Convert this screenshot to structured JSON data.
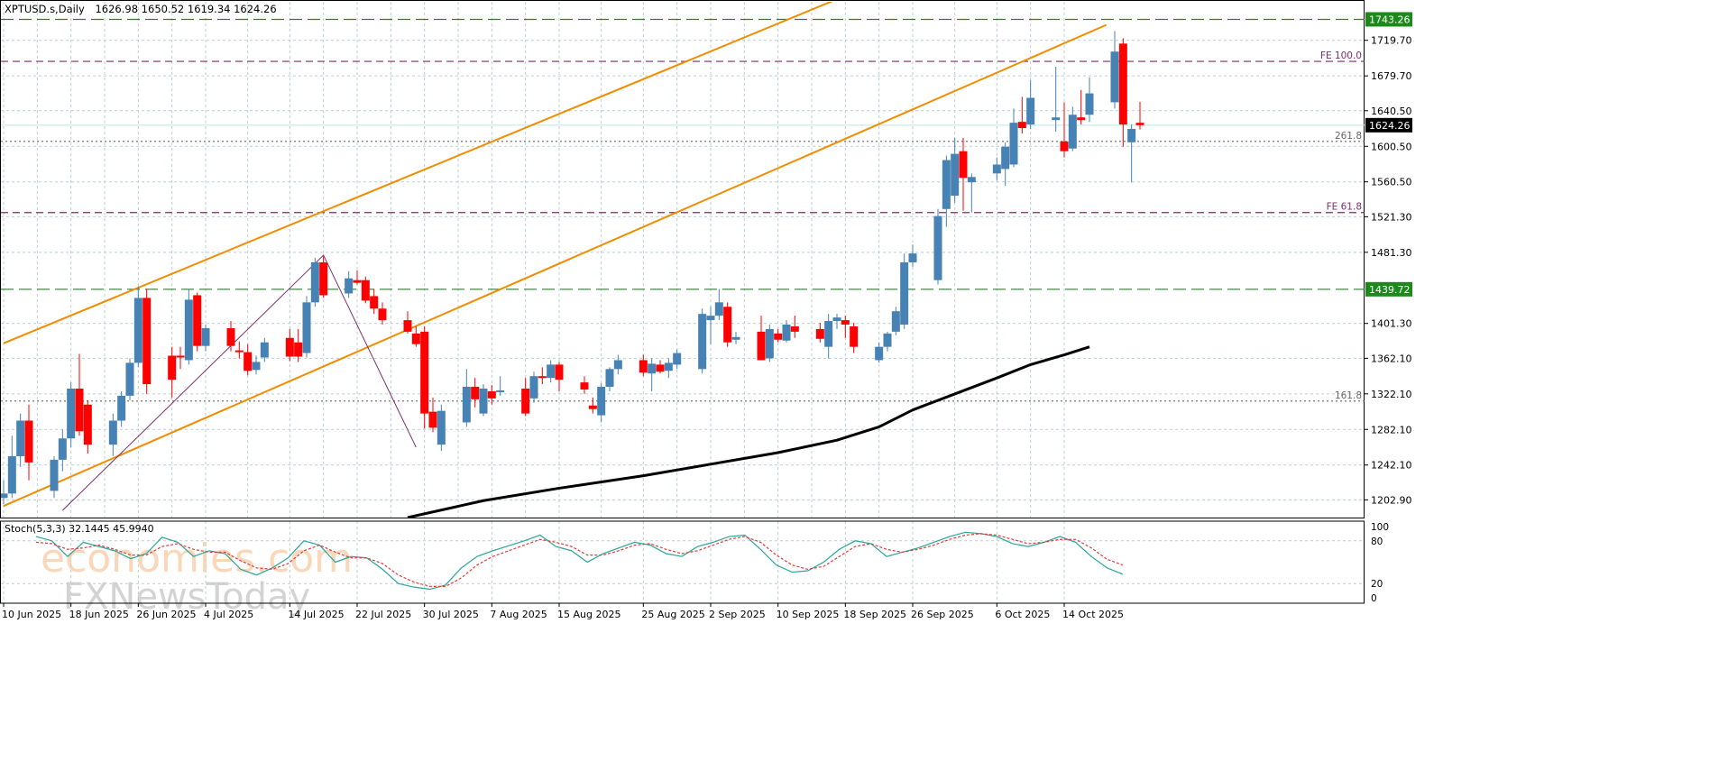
{
  "header": {
    "symbol": "XPTUSD.s,Daily",
    "ohlc": "1626.98 1650.52 1619.34 1624.26"
  },
  "watermark": {
    "line1": "economies.com",
    "line2": "FXNewsToday"
  },
  "chart_data": {
    "type": "candlestick",
    "symbol": "XPTUSD.s",
    "timeframe": "Daily",
    "price_axis": {
      "range": [
        1183,
        1763
      ],
      "tick_labels": [
        "1719.70",
        "1679.70",
        "1640.50",
        "1600.50",
        "1560.50",
        "1521.30",
        "1481.30",
        "1401.30",
        "1362.10",
        "1322.10",
        "1282.10",
        "1242.10",
        "1202.90"
      ]
    },
    "date_axis": [
      "10 Jun 2025",
      "18 Jun 2025",
      "26 Jun 2025",
      "4 Jul 2025",
      "14 Jul 2025",
      "22 Jul 2025",
      "30 Jul 2025",
      "7 Aug 2025",
      "15 Aug 2025",
      "25 Aug 2025",
      "2 Sep 2025",
      "10 Sep 2025",
      "18 Sep 2025",
      "26 Sep 2025",
      "6 Oct 2025",
      "14 Oct 2025"
    ],
    "current_price": {
      "value": 1624.26,
      "label": "1624.26"
    },
    "horizontal_levels": [
      {
        "value": 1743.26,
        "label": "1743.26",
        "style": "long-dash",
        "color": "#2e7d32",
        "boxed": true
      },
      {
        "value": 1439.72,
        "label": "1439.72",
        "style": "long-dash",
        "color": "#2e7d32",
        "boxed": true
      },
      {
        "value": 1696,
        "label": "FE 100.0",
        "style": "dash",
        "color": "#7b2d6e",
        "boxed": false
      },
      {
        "value": 1526,
        "label": "FE 61.8",
        "style": "dash",
        "color": "#7b2d6e",
        "boxed": false
      },
      {
        "value": 1606,
        "label": "261.8",
        "style": "dot",
        "color": "#666666",
        "boxed": false
      },
      {
        "value": 1314,
        "label": "161.8",
        "style": "dot",
        "color": "#666666",
        "boxed": false
      }
    ],
    "channel_lines": [
      {
        "color": "#f28c00",
        "points": [
          [
            "10 Jun 2025",
            1379
          ],
          [
            "19 Oct 2025",
            1891
          ]
        ]
      },
      {
        "color": "#f28c00",
        "points": [
          [
            "10 Jun 2025",
            1196
          ],
          [
            "19 Oct 2025",
            1737
          ]
        ]
      }
    ],
    "fib_lines": [
      {
        "color": "#7b2d6e",
        "points": [
          [
            "17 Jun 2025",
            1191
          ],
          [
            "18 Jul 2025",
            1478
          ],
          [
            "29 Jul 2025",
            1262
          ]
        ]
      }
    ],
    "moving_average": {
      "color": "#000000",
      "points": [
        [
          "28 Jul 2025",
          1183
        ],
        [
          "6 Aug 2025",
          1202
        ],
        [
          "15 Aug 2025",
          1216
        ],
        [
          "25 Aug 2025",
          1230
        ],
        [
          "2 Sep 2025",
          1243
        ],
        [
          "10 Sep 2025",
          1256
        ],
        [
          "17 Sep 2025",
          1270
        ],
        [
          "22 Sep 2025",
          1285
        ],
        [
          "26 Sep 2025",
          1304
        ],
        [
          "1 Oct 2025",
          1322
        ],
        [
          "6 Oct 2025",
          1340
        ],
        [
          "10 Oct 2025",
          1355
        ],
        [
          "14 Oct 2025",
          1366
        ],
        [
          "17 Oct 2025",
          1375
        ]
      ]
    },
    "candles": [
      {
        "d": "10 Jun 2025",
        "o": 1205,
        "h": 1225,
        "l": 1198,
        "c": 1210
      },
      {
        "d": "11 Jun 2025",
        "o": 1210,
        "h": 1275,
        "l": 1205,
        "c": 1252
      },
      {
        "d": "12 Jun 2025",
        "o": 1252,
        "h": 1300,
        "l": 1240,
        "c": 1292
      },
      {
        "d": "13 Jun 2025",
        "o": 1292,
        "h": 1310,
        "l": 1225,
        "c": 1245
      },
      {
        "d": "16 Jun 2025",
        "o": 1213,
        "h": 1252,
        "l": 1205,
        "c": 1248
      },
      {
        "d": "17 Jun 2025",
        "o": 1248,
        "h": 1282,
        "l": 1235,
        "c": 1272
      },
      {
        "d": "18 Jun 2025",
        "o": 1272,
        "h": 1335,
        "l": 1262,
        "c": 1328
      },
      {
        "d": "19 Jun 2025",
        "o": 1328,
        "h": 1367,
        "l": 1275,
        "c": 1280
      },
      {
        "d": "20 Jun 2025",
        "o": 1310,
        "h": 1315,
        "l": 1255,
        "c": 1265
      },
      {
        "d": "23 Jun 2025",
        "o": 1265,
        "h": 1300,
        "l": 1252,
        "c": 1292
      },
      {
        "d": "24 Jun 2025",
        "o": 1292,
        "h": 1325,
        "l": 1285,
        "c": 1320
      },
      {
        "d": "25 Jun 2025",
        "o": 1320,
        "h": 1362,
        "l": 1315,
        "c": 1357
      },
      {
        "d": "26 Jun 2025",
        "o": 1357,
        "h": 1443,
        "l": 1352,
        "c": 1430
      },
      {
        "d": "27 Jun 2025",
        "o": 1430,
        "h": 1440,
        "l": 1322,
        "c": 1333
      },
      {
        "d": "30 Jun 2025",
        "o": 1365,
        "h": 1375,
        "l": 1318,
        "c": 1338
      },
      {
        "d": "1 Jul 2025",
        "o": 1365,
        "h": 1375,
        "l": 1350,
        "c": 1363
      },
      {
        "d": "2 Jul 2025",
        "o": 1360,
        "h": 1440,
        "l": 1355,
        "c": 1428
      },
      {
        "d": "3 Jul 2025",
        "o": 1433,
        "h": 1436,
        "l": 1370,
        "c": 1376
      },
      {
        "d": "4 Jul 2025",
        "o": 1376,
        "h": 1400,
        "l": 1370,
        "c": 1396
      },
      {
        "d": "7 Jul 2025",
        "o": 1396,
        "h": 1404,
        "l": 1370,
        "c": 1376
      },
      {
        "d": "8 Jul 2025",
        "o": 1371,
        "h": 1381,
        "l": 1362,
        "c": 1370
      },
      {
        "d": "9 Jul 2025",
        "o": 1369,
        "h": 1378,
        "l": 1343,
        "c": 1348
      },
      {
        "d": "10 Jul 2025",
        "o": 1349,
        "h": 1365,
        "l": 1344,
        "c": 1358
      },
      {
        "d": "11 Jul 2025",
        "o": 1363,
        "h": 1385,
        "l": 1358,
        "c": 1380
      },
      {
        "d": "14 Jul 2025",
        "o": 1385,
        "h": 1395,
        "l": 1359,
        "c": 1364
      },
      {
        "d": "15 Jul 2025",
        "o": 1380,
        "h": 1395,
        "l": 1358,
        "c": 1364
      },
      {
        "d": "16 Jul 2025",
        "o": 1368,
        "h": 1432,
        "l": 1363,
        "c": 1425
      },
      {
        "d": "17 Jul 2025",
        "o": 1425,
        "h": 1475,
        "l": 1420,
        "c": 1470
      },
      {
        "d": "18 Jul 2025",
        "o": 1470,
        "h": 1478,
        "l": 1430,
        "c": 1433
      },
      {
        "d": "21 Jul 2025",
        "o": 1435,
        "h": 1460,
        "l": 1430,
        "c": 1452
      },
      {
        "d": "22 Jul 2025",
        "o": 1450,
        "h": 1461,
        "l": 1445,
        "c": 1447
      },
      {
        "d": "23 Jul 2025",
        "o": 1450,
        "h": 1454,
        "l": 1424,
        "c": 1427
      },
      {
        "d": "24 Jul 2025",
        "o": 1432,
        "h": 1440,
        "l": 1412,
        "c": 1418
      },
      {
        "d": "25 Jul 2025",
        "o": 1418,
        "h": 1425,
        "l": 1400,
        "c": 1405
      },
      {
        "d": "28 Jul 2025",
        "o": 1405,
        "h": 1415,
        "l": 1390,
        "c": 1392
      },
      {
        "d": "29 Jul 2025",
        "o": 1390,
        "h": 1398,
        "l": 1375,
        "c": 1378
      },
      {
        "d": "30 Jul 2025",
        "o": 1392,
        "h": 1398,
        "l": 1283,
        "c": 1300
      },
      {
        "d": "31 Jul 2025",
        "o": 1302,
        "h": 1318,
        "l": 1279,
        "c": 1284
      },
      {
        "d": "1 Aug 2025",
        "o": 1265,
        "h": 1310,
        "l": 1258,
        "c": 1303
      },
      {
        "d": "4 Aug 2025",
        "o": 1290,
        "h": 1350,
        "l": 1285,
        "c": 1330
      },
      {
        "d": "5 Aug 2025",
        "o": 1330,
        "h": 1340,
        "l": 1307,
        "c": 1316
      },
      {
        "d": "6 Aug 2025",
        "o": 1300,
        "h": 1333,
        "l": 1297,
        "c": 1328
      },
      {
        "d": "7 Aug 2025",
        "o": 1325,
        "h": 1332,
        "l": 1310,
        "c": 1317
      },
      {
        "d": "8 Aug 2025",
        "o": 1325,
        "h": 1342,
        "l": 1320,
        "c": 1326
      },
      {
        "d": "11 Aug 2025",
        "o": 1328,
        "h": 1340,
        "l": 1297,
        "c": 1300
      },
      {
        "d": "12 Aug 2025",
        "o": 1317,
        "h": 1347,
        "l": 1312,
        "c": 1342
      },
      {
        "d": "13 Aug 2025",
        "o": 1342,
        "h": 1352,
        "l": 1333,
        "c": 1340
      },
      {
        "d": "14 Aug 2025",
        "o": 1340,
        "h": 1360,
        "l": 1335,
        "c": 1355
      },
      {
        "d": "15 Aug 2025",
        "o": 1355,
        "h": 1358,
        "l": 1325,
        "c": 1338
      },
      {
        "d": "18 Aug 2025",
        "o": 1335,
        "h": 1342,
        "l": 1322,
        "c": 1327
      },
      {
        "d": "19 Aug 2025",
        "o": 1309,
        "h": 1318,
        "l": 1300,
        "c": 1305
      },
      {
        "d": "20 Aug 2025",
        "o": 1298,
        "h": 1334,
        "l": 1290,
        "c": 1330
      },
      {
        "d": "21 Aug 2025",
        "o": 1330,
        "h": 1352,
        "l": 1325,
        "c": 1350
      },
      {
        "d": "22 Aug 2025",
        "o": 1350,
        "h": 1366,
        "l": 1344,
        "c": 1360
      },
      {
        "d": "25 Aug 2025",
        "o": 1360,
        "h": 1366,
        "l": 1342,
        "c": 1346
      },
      {
        "d": "26 Aug 2025",
        "o": 1345,
        "h": 1362,
        "l": 1325,
        "c": 1356
      },
      {
        "d": "27 Aug 2025",
        "o": 1355,
        "h": 1360,
        "l": 1345,
        "c": 1347
      },
      {
        "d": "28 Aug 2025",
        "o": 1348,
        "h": 1362,
        "l": 1340,
        "c": 1357
      },
      {
        "d": "29 Aug 2025",
        "o": 1355,
        "h": 1372,
        "l": 1350,
        "c": 1368
      },
      {
        "d": "1 Sep 2025",
        "o": 1350,
        "h": 1418,
        "l": 1345,
        "c": 1412
      },
      {
        "d": "2 Sep 2025",
        "o": 1405,
        "h": 1420,
        "l": 1378,
        "c": 1410
      },
      {
        "d": "3 Sep 2025",
        "o": 1410,
        "h": 1440,
        "l": 1405,
        "c": 1425
      },
      {
        "d": "4 Sep 2025",
        "o": 1420,
        "h": 1425,
        "l": 1375,
        "c": 1380
      },
      {
        "d": "5 Sep 2025",
        "o": 1383,
        "h": 1392,
        "l": 1378,
        "c": 1386
      },
      {
        "d": "8 Sep 2025",
        "o": 1392,
        "h": 1410,
        "l": 1365,
        "c": 1360
      },
      {
        "d": "9 Sep 2025",
        "o": 1362,
        "h": 1400,
        "l": 1358,
        "c": 1395
      },
      {
        "d": "10 Sep 2025",
        "o": 1390,
        "h": 1395,
        "l": 1380,
        "c": 1383
      },
      {
        "d": "11 Sep 2025",
        "o": 1382,
        "h": 1405,
        "l": 1380,
        "c": 1400
      },
      {
        "d": "12 Sep 2025",
        "o": 1398,
        "h": 1410,
        "l": 1385,
        "c": 1392
      },
      {
        "d": "15 Sep 2025",
        "o": 1395,
        "h": 1402,
        "l": 1380,
        "c": 1384
      },
      {
        "d": "16 Sep 2025",
        "o": 1375,
        "h": 1412,
        "l": 1362,
        "c": 1404
      },
      {
        "d": "17 Sep 2025",
        "o": 1404,
        "h": 1412,
        "l": 1395,
        "c": 1408
      },
      {
        "d": "18 Sep 2025",
        "o": 1405,
        "h": 1410,
        "l": 1385,
        "c": 1400
      },
      {
        "d": "19 Sep 2025",
        "o": 1398,
        "h": 1402,
        "l": 1368,
        "c": 1375
      },
      {
        "d": "22 Sep 2025",
        "o": 1360,
        "h": 1380,
        "l": 1357,
        "c": 1375
      },
      {
        "d": "23 Sep 2025",
        "o": 1375,
        "h": 1392,
        "l": 1370,
        "c": 1390
      },
      {
        "d": "24 Sep 2025",
        "o": 1392,
        "h": 1420,
        "l": 1388,
        "c": 1415
      },
      {
        "d": "25 Sep 2025",
        "o": 1400,
        "h": 1480,
        "l": 1395,
        "c": 1470
      },
      {
        "d": "26 Sep 2025",
        "o": 1470,
        "h": 1490,
        "l": 1465,
        "c": 1480
      },
      {
        "d": "29 Sep 2025",
        "o": 1450,
        "h": 1530,
        "l": 1445,
        "c": 1522
      },
      {
        "d": "30 Sep 2025",
        "o": 1530,
        "h": 1590,
        "l": 1510,
        "c": 1585
      },
      {
        "d": "1 Oct 2025",
        "o": 1545,
        "h": 1610,
        "l": 1537,
        "c": 1592
      },
      {
        "d": "2 Oct 2025",
        "o": 1595,
        "h": 1610,
        "l": 1528,
        "c": 1565
      },
      {
        "d": "3 Oct 2025",
        "o": 1560,
        "h": 1570,
        "l": 1526,
        "c": 1566
      },
      {
        "d": "6 Oct 2025",
        "o": 1570,
        "h": 1588,
        "l": 1562,
        "c": 1580
      },
      {
        "d": "7 Oct 2025",
        "o": 1575,
        "h": 1605,
        "l": 1556,
        "c": 1600
      },
      {
        "d": "8 Oct 2025",
        "o": 1580,
        "h": 1643,
        "l": 1577,
        "c": 1627
      },
      {
        "d": "9 Oct 2025",
        "o": 1628,
        "h": 1656,
        "l": 1615,
        "c": 1621
      },
      {
        "d": "10 Oct 2025",
        "o": 1625,
        "h": 1675,
        "l": 1620,
        "c": 1655
      },
      {
        "d": "13 Oct 2025",
        "o": 1630,
        "h": 1690,
        "l": 1617,
        "c": 1633
      },
      {
        "d": "14 Oct 2025",
        "o": 1606,
        "h": 1650,
        "l": 1588,
        "c": 1595
      },
      {
        "d": "15 Oct 2025",
        "o": 1598,
        "h": 1645,
        "l": 1595,
        "c": 1636
      },
      {
        "d": "16 Oct 2025",
        "o": 1633,
        "h": 1664,
        "l": 1625,
        "c": 1630
      },
      {
        "d": "17 Oct 2025",
        "o": 1636,
        "h": 1678,
        "l": 1628,
        "c": 1660
      },
      {
        "d": "20 Oct 2025",
        "o": 1650,
        "h": 1730,
        "l": 1643,
        "c": 1707
      },
      {
        "d": "21 Oct 2025",
        "o": 1716,
        "h": 1722,
        "l": 1600,
        "c": 1625
      },
      {
        "d": "22 Oct 2025",
        "o": 1605,
        "h": 1625,
        "l": 1560,
        "c": 1620
      },
      {
        "d": "23 Oct 2025",
        "o": 1626.98,
        "h": 1650.52,
        "l": 1619.34,
        "c": 1624.26
      }
    ],
    "stochastic": {
      "label": "Stoch(5,3,3) 32.1445 45.9940",
      "range": [
        0,
        100
      ],
      "tick_labels": [
        "100",
        "80",
        "20",
        "0"
      ],
      "k_color": "#26a69a",
      "d_color": "#e53935",
      "k": [
        86,
        80,
        58,
        78,
        72,
        66,
        55,
        62,
        85,
        78,
        58,
        66,
        62,
        40,
        32,
        42,
        56,
        80,
        74,
        50,
        58,
        56,
        40,
        20,
        15,
        12,
        18,
        42,
        58,
        66,
        73,
        80,
        88,
        72,
        66,
        50,
        62,
        70,
        78,
        74,
        62,
        58,
        72,
        78,
        86,
        88,
        68,
        46,
        36,
        38,
        50,
        68,
        80,
        76,
        58,
        64,
        70,
        78,
        86,
        92,
        90,
        86,
        76,
        72,
        78,
        86,
        78,
        58,
        42,
        33
      ],
      "d": [
        78,
        76,
        68,
        70,
        74,
        68,
        60,
        60,
        72,
        76,
        68,
        64,
        64,
        52,
        42,
        40,
        48,
        66,
        74,
        64,
        56,
        56,
        48,
        32,
        22,
        16,
        16,
        28,
        46,
        58,
        66,
        74,
        82,
        78,
        72,
        60,
        60,
        66,
        74,
        76,
        68,
        62,
        66,
        74,
        82,
        86,
        78,
        60,
        46,
        40,
        44,
        58,
        72,
        76,
        68,
        64,
        68,
        74,
        82,
        88,
        90,
        88,
        82,
        76,
        78,
        82,
        82,
        70,
        54,
        46
      ]
    }
  }
}
